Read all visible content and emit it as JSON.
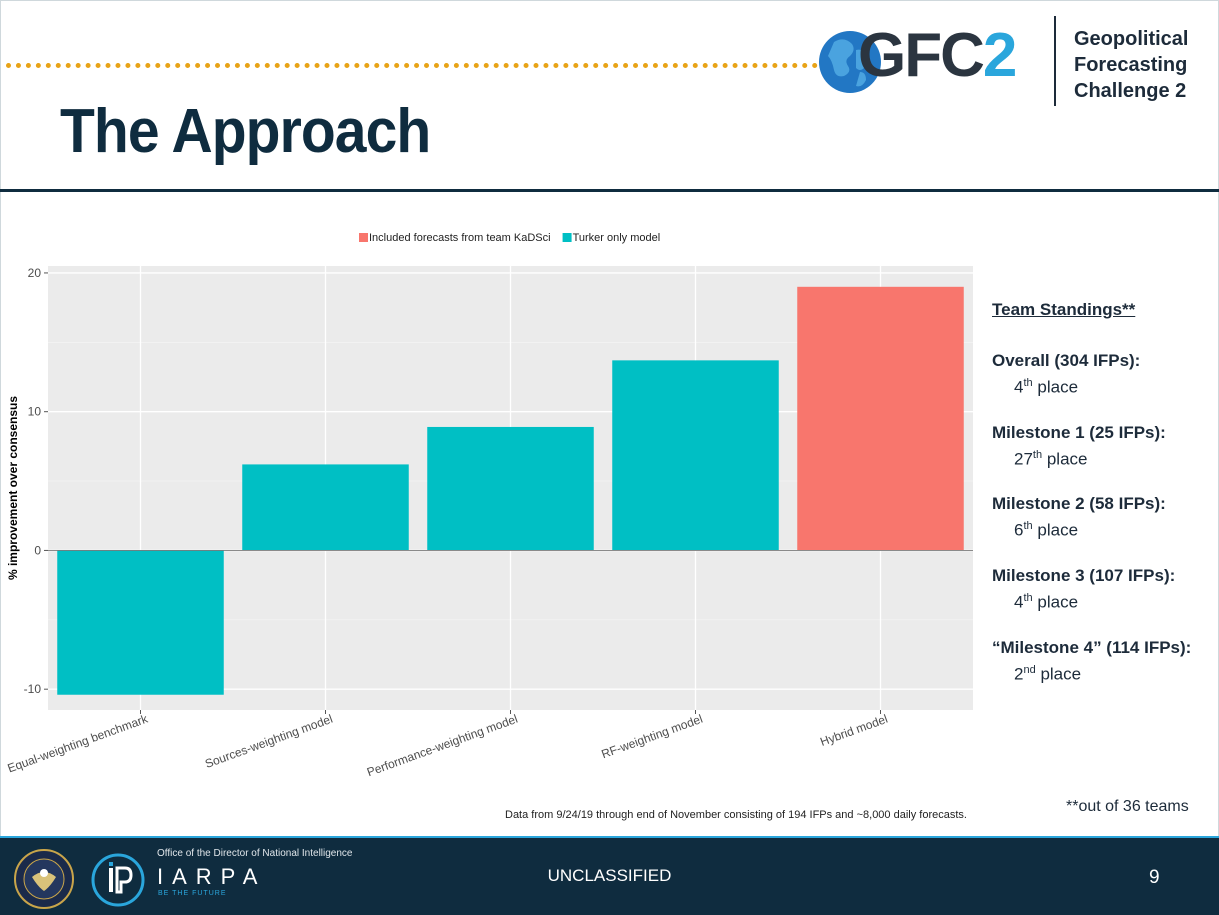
{
  "header": {
    "title": "The Approach",
    "logo_main": "GFC",
    "logo_num": "2",
    "logo_sub": [
      "Geopolitical",
      "Forecasting",
      "Challenge 2"
    ]
  },
  "chart_data": {
    "type": "bar",
    "ylabel": "% improvement over consensus",
    "xlabel": "",
    "ylim": [
      -11.5,
      20.5
    ],
    "yticks": [
      -10,
      0,
      10,
      20
    ],
    "grid": true,
    "legend_position": "top",
    "legend": [
      {
        "name": "Included forecasts from team KaDSci",
        "color": "#f8766d"
      },
      {
        "name": "Turker only model",
        "color": "#00bfc4"
      }
    ],
    "categories": [
      "Equal-weighting benchmark",
      "Sources-weighting model",
      "Performance-weighting model",
      "RF-weighting model",
      "Hybrid model"
    ],
    "values": [
      -10.4,
      6.2,
      8.9,
      13.7,
      19.0
    ],
    "colors": [
      "#00bfc4",
      "#00bfc4",
      "#00bfc4",
      "#00bfc4",
      "#f8766d"
    ],
    "note": "Data from 9/24/19 through end of November consisting of 194 IFPs and ~8,000 daily forecasts."
  },
  "standings": {
    "heading": "Team Standings**",
    "items": [
      {
        "label": "Overall (304 IFPs):",
        "num": "4",
        "suffix": "th",
        "place": "place"
      },
      {
        "label": "Milestone 1 (25 IFPs):",
        "num": "27",
        "suffix": "th",
        "place": "place"
      },
      {
        "label": "Milestone 2 (58 IFPs):",
        "num": "6",
        "suffix": "th",
        "place": "place"
      },
      {
        "label": "Milestone 3 (107 IFPs):",
        "num": "4",
        "suffix": "th",
        "place": "place"
      },
      {
        "label": "“Milestone 4” (114 IFPs):",
        "num": "2",
        "suffix": "nd",
        "place": "place"
      }
    ],
    "footnote": "**out of 36 teams"
  },
  "footer": {
    "office": "Office of the Director of National Intelligence",
    "org": "IARPA",
    "tagline": "BE THE FUTURE",
    "classification": "UNCLASSIFIED",
    "page": "9"
  },
  "icons": {
    "globe": "globe-icon",
    "seal": "odni-seal-icon",
    "iarpa": "iarpa-logo-icon"
  }
}
